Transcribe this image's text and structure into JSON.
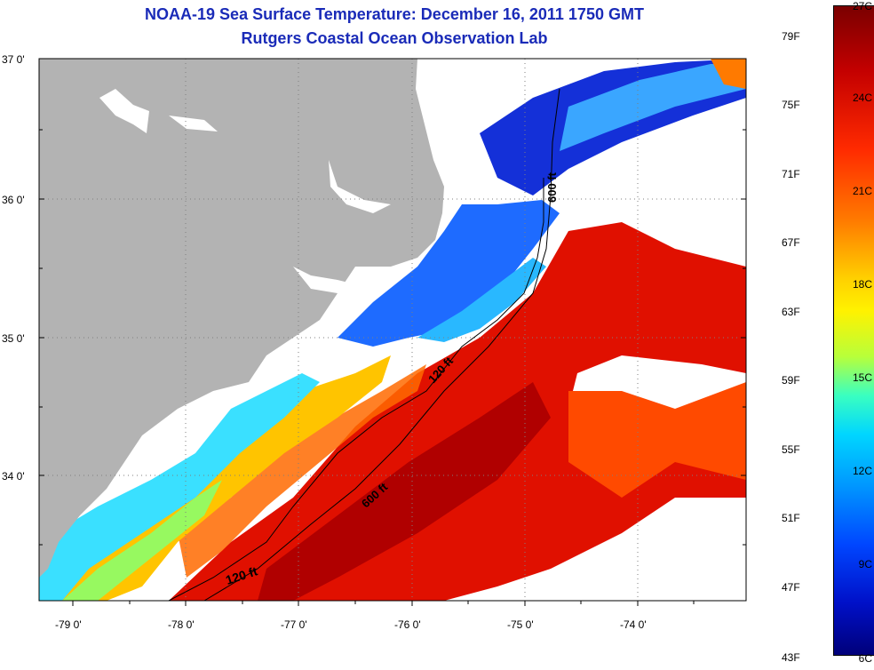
{
  "title": {
    "line1": "NOAA-19 Sea Surface Temperature:  December 16, 2011 1750 GMT",
    "line2": "Rutgers Coastal Ocean Observation Lab"
  },
  "axes": {
    "lat_labels": [
      "37 0'",
      "36 0'",
      "35 0'",
      "34 0'"
    ],
    "lon_labels": [
      "-79 0'",
      "-78 0'",
      "-77 0'",
      "-76 0'",
      "-75 0'",
      "-74 0'"
    ]
  },
  "contours": {
    "label_120_top": "120 ft",
    "label_600_top": "600 ft",
    "label_600_mid": "600 ft",
    "label_120_bottom": "120 ft"
  },
  "colorbar": {
    "fahrenheit": [
      "79F",
      "75F",
      "71F",
      "67F",
      "63F",
      "59F",
      "55F",
      "51F",
      "47F",
      "43F"
    ],
    "celsius": [
      "27C",
      "24C",
      "21C",
      "18C",
      "15C",
      "12C",
      "9C",
      "6C"
    ],
    "colors": [
      "#7a0000",
      "#c40000",
      "#ff2a00",
      "#ff7a00",
      "#ffd000",
      "#fff200",
      "#3affc0",
      "#00d6ff",
      "#0046ff",
      "#00007a"
    ]
  },
  "map_colors": {
    "land": "#b3b3b3",
    "no_data": "#ffffff",
    "grid": "#7f7f7f"
  }
}
